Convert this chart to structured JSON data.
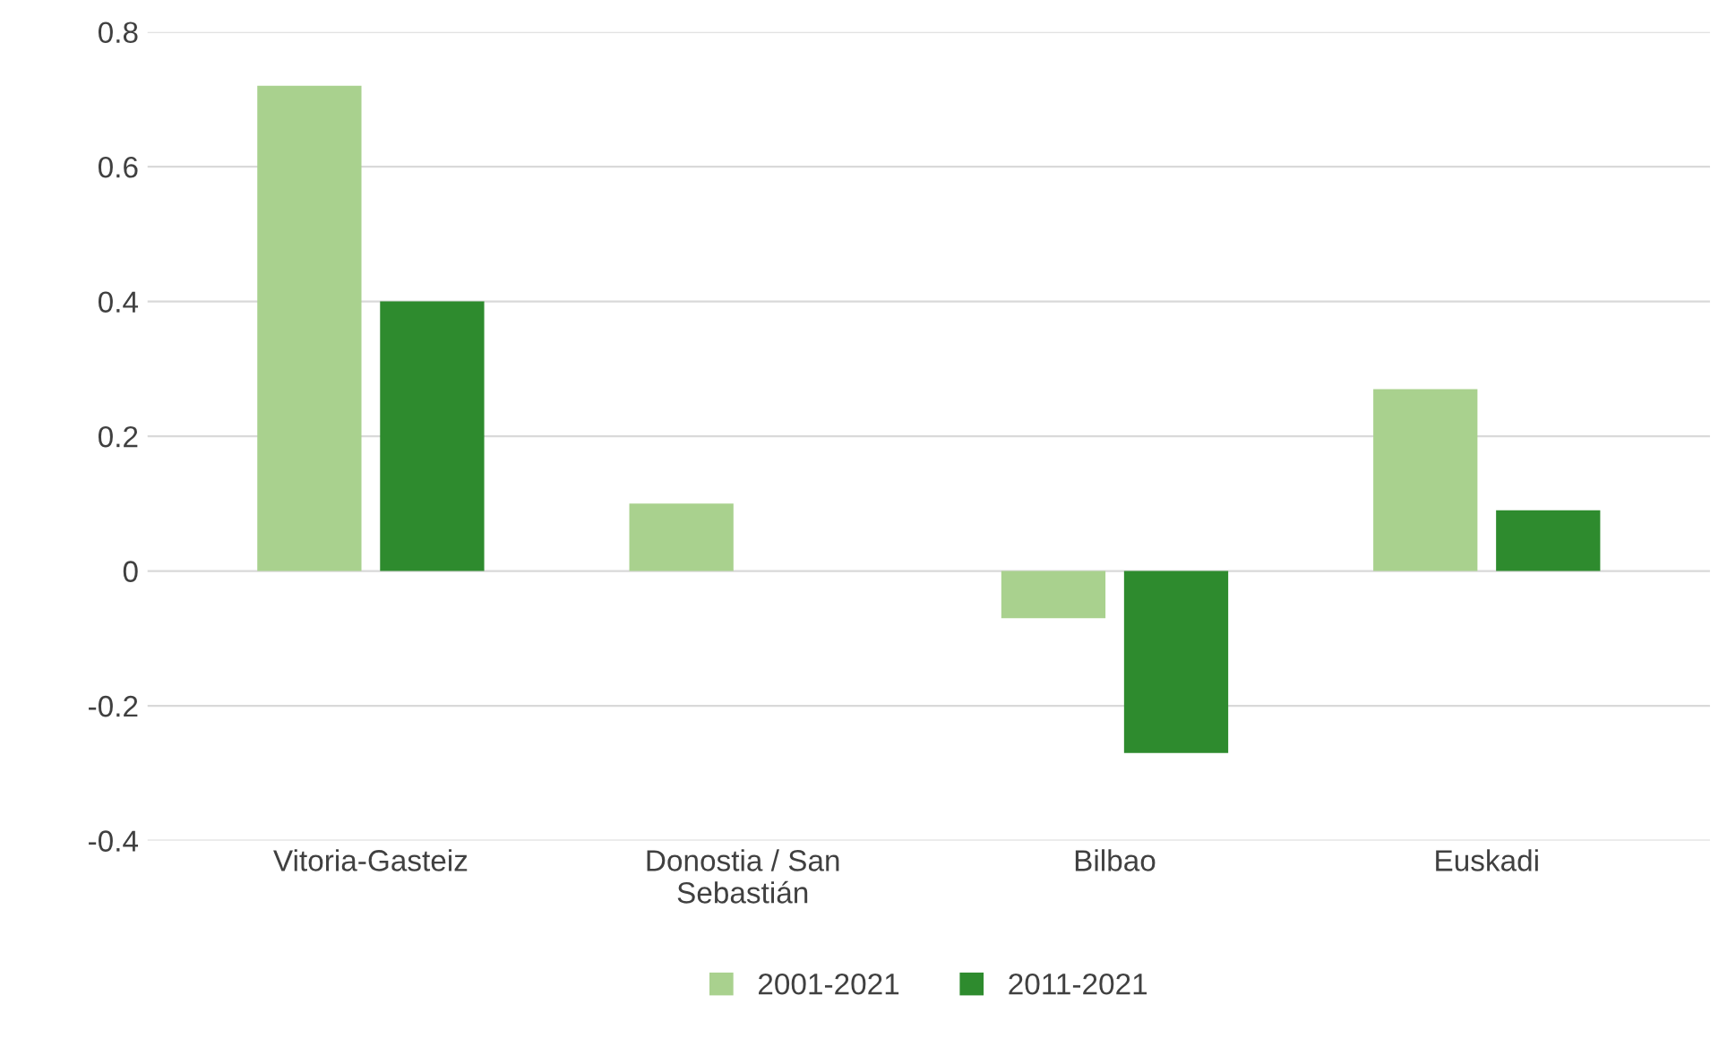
{
  "chart_data": {
    "type": "bar",
    "categories": [
      "Vitoria-Gasteiz",
      "Donostia / San\nSebastián",
      "Bilbao",
      "Euskadi"
    ],
    "series": [
      {
        "name": "2001-2021",
        "color": "#a9d18e",
        "values": [
          0.72,
          0.1,
          -0.07,
          0.27
        ]
      },
      {
        "name": "2011-2021",
        "color": "#2e8b2e",
        "values": [
          0.4,
          0,
          -0.27,
          0.09
        ]
      }
    ],
    "ylim": [
      -0.4,
      0.8
    ],
    "yticks": [
      -0.4,
      -0.2,
      0,
      0.2,
      0.4,
      0.6,
      0.8
    ],
    "grid": "y",
    "legend": "bottom"
  }
}
